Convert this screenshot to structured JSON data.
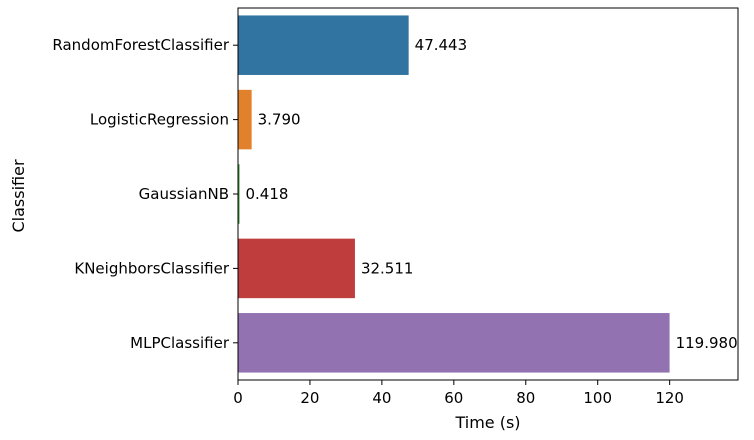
{
  "chart_data": {
    "type": "bar",
    "orientation": "horizontal",
    "xlabel": "Time (s)",
    "ylabel": "Classifier",
    "xlim": [
      0,
      139
    ],
    "xticks": [
      0,
      20,
      40,
      60,
      80,
      100,
      120
    ],
    "grid": false,
    "categories": [
      "RandomForestClassifier",
      "LogisticRegression",
      "GaussianNB",
      "KNeighborsClassifier",
      "MLPClassifier"
    ],
    "values": [
      47.443,
      3.79,
      0.418,
      32.511,
      119.98
    ],
    "value_labels": [
      "47.443",
      "3.790",
      "0.418",
      "32.511",
      "119.980"
    ],
    "colors": [
      "#3274a1",
      "#e1812c",
      "#3a923a",
      "#c03d3e",
      "#9372b2"
    ]
  }
}
